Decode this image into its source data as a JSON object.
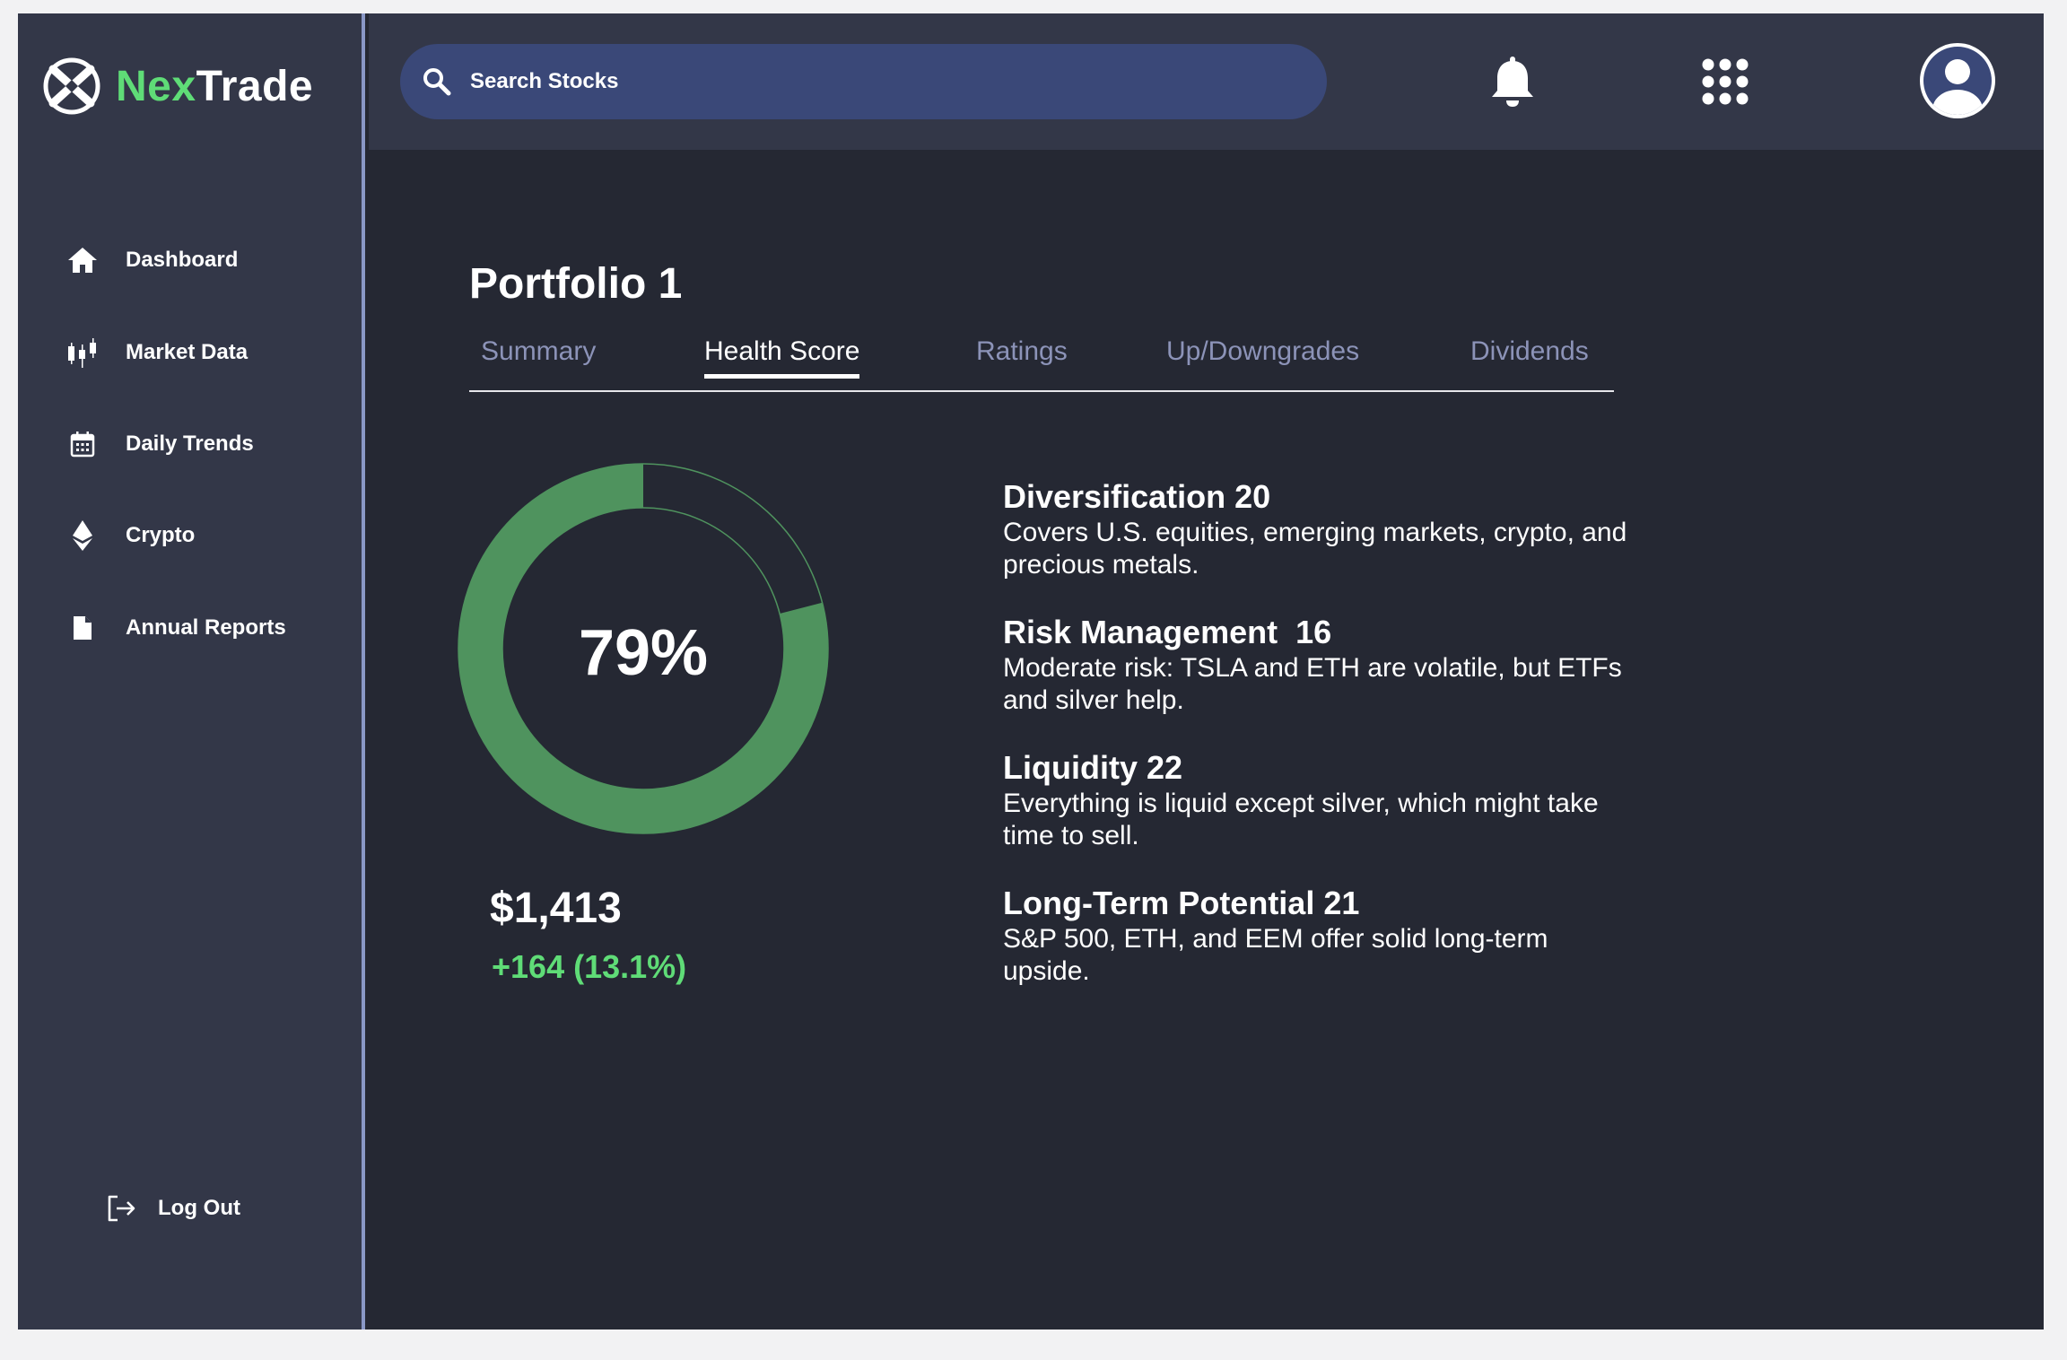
{
  "brand": {
    "name_part1": "Nex",
    "name_part2": "Trade",
    "accent_color": "#5fdc77",
    "icon": "crossed-circle-logo-icon"
  },
  "sidebar": {
    "items": [
      {
        "label": "Dashboard",
        "icon": "home-icon"
      },
      {
        "label": "Market Data",
        "icon": "candlestick-icon"
      },
      {
        "label": "Daily Trends",
        "icon": "calendar-icon"
      },
      {
        "label": "Crypto",
        "icon": "ethereum-icon"
      },
      {
        "label": "Annual Reports",
        "icon": "document-icon"
      }
    ],
    "logout_label": "Log Out"
  },
  "header": {
    "search_placeholder": "Search Stocks",
    "icons": [
      "search-icon",
      "bell-icon",
      "apps-grid-icon",
      "user-avatar-icon"
    ]
  },
  "main": {
    "title": "Portfolio 1",
    "tabs": [
      {
        "label": "Summary",
        "active": false
      },
      {
        "label": "Health Score",
        "active": true
      },
      {
        "label": "Ratings",
        "active": false
      },
      {
        "label": "Up/Downgrades",
        "active": false
      },
      {
        "label": "Dividends",
        "active": false
      }
    ],
    "health": {
      "score_text": "79%",
      "score_fraction": 0.79,
      "ring_color": "#4f935e"
    },
    "balance": "$1,413",
    "change": "+164 (13.1%)",
    "metrics": [
      {
        "title": "Diversification 20",
        "description": "Covers U.S. equities, emerging markets, crypto, and precious metals."
      },
      {
        "title": "Risk Management  16",
        "description": "Moderate risk: TSLA and ETH are volatile, but ETFs and silver help."
      },
      {
        "title": "Liquidity 22",
        "description": "Everything is liquid except silver, which might take time to sell."
      },
      {
        "title": "Long-Term Potential 21",
        "description": "S&P 500, ETH, and EEM offer solid long-term upside."
      }
    ]
  }
}
